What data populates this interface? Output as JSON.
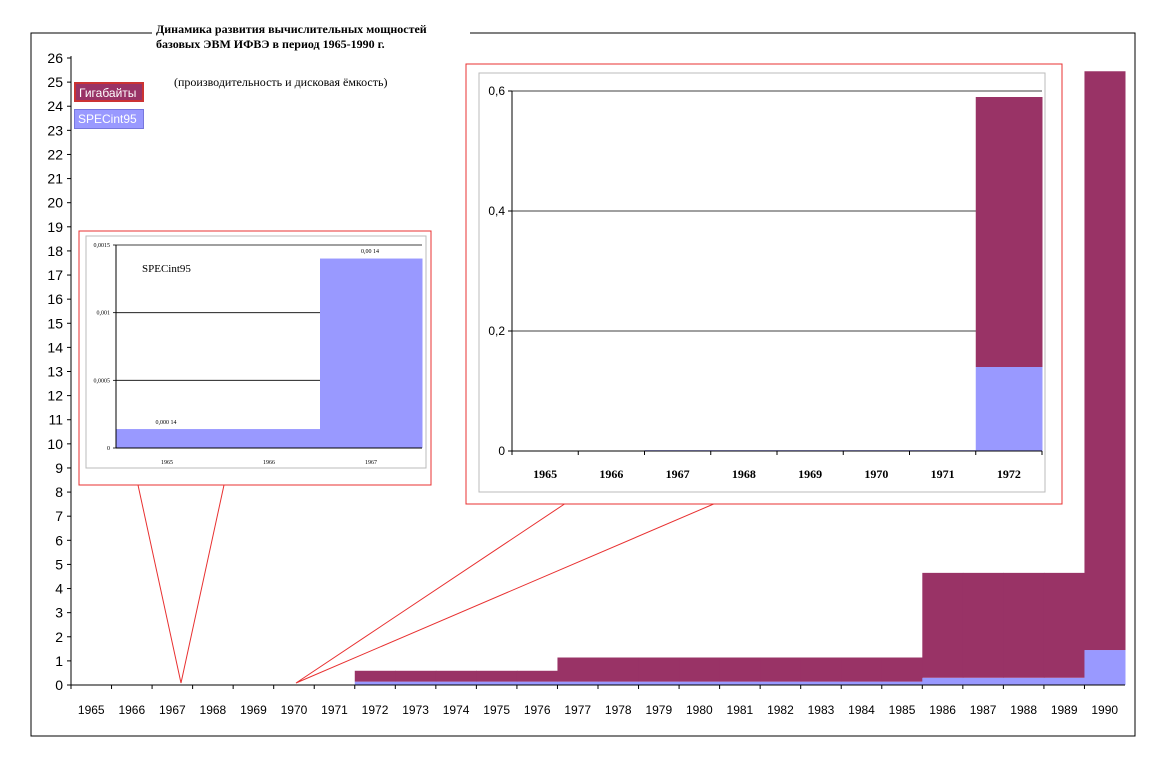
{
  "colors": {
    "gigabytes": "#993366",
    "specint": "#9999ff",
    "callout": "#e83030",
    "axis": "#000000"
  },
  "title": "Динамика развития вычислительных мощностей базовых ЭВМ ИФВЭ в период 1965-1990 г.",
  "subtitle": "(производительность и дисковая ёмкость)",
  "legend": [
    "Гигабайты",
    "SPECint95"
  ],
  "chart_data": [
    {
      "type": "bar",
      "stacked": true,
      "categories": [
        "1965",
        "1966",
        "1967",
        "1968",
        "1969",
        "1970",
        "1971",
        "1972",
        "1973",
        "1974",
        "1975",
        "1976",
        "1977",
        "1978",
        "1979",
        "1980",
        "1981",
        "1982",
        "1983",
        "1984",
        "1985",
        "1986",
        "1987",
        "1988",
        "1989",
        "1990"
      ],
      "series": [
        {
          "name": "SPECint95",
          "values": [
            0.00014,
            0.00014,
            0.0014,
            0.0014,
            0.0014,
            0.0014,
            0.0014,
            0.14,
            0.14,
            0.14,
            0.14,
            0.14,
            0.14,
            0.14,
            0.14,
            0.14,
            0.14,
            0.14,
            0.14,
            0.14,
            0.14,
            0.3,
            0.3,
            0.3,
            0.3,
            1.45
          ]
        },
        {
          "name": "Гигабайты",
          "values": [
            0,
            0,
            0,
            0,
            0,
            0,
            0,
            0.45,
            0.45,
            0.45,
            0.45,
            0.45,
            1.0,
            1.0,
            1.0,
            1.0,
            1.0,
            1.0,
            1.0,
            1.0,
            1.0,
            4.35,
            4.35,
            4.35,
            4.35,
            24.0
          ]
        }
      ],
      "ylim": [
        0,
        26
      ],
      "yticks": [
        "0",
        "1",
        "2",
        "3",
        "4",
        "5",
        "6",
        "7",
        "8",
        "9",
        "10",
        "11",
        "12",
        "13",
        "14",
        "15",
        "16",
        "17",
        "18",
        "19",
        "20",
        "21",
        "22",
        "23",
        "24",
        "25",
        "26"
      ],
      "legend_position": "top-left",
      "grid": false
    },
    {
      "type": "bar",
      "categories": [
        "1965",
        "1966",
        "1967"
      ],
      "series": [
        {
          "name": "SPECint95",
          "values": [
            0.00014,
            0.00014,
            0.0014
          ]
        }
      ],
      "data_labels": [
        "0,000 14",
        "0,00 14"
      ],
      "yticks": [
        "0",
        "0,0005",
        "0,001",
        "0,0015"
      ],
      "ylim": [
        0,
        0.0015
      ],
      "annotation": "SPECint95",
      "grid": true
    },
    {
      "type": "bar",
      "stacked": true,
      "categories": [
        "1965",
        "1966",
        "1967",
        "1968",
        "1969",
        "1970",
        "1971",
        "1972"
      ],
      "series": [
        {
          "name": "SPECint95",
          "values": [
            0.00014,
            0.00014,
            0.0014,
            0.0014,
            0.0014,
            0.0014,
            0.0014,
            0.14
          ]
        },
        {
          "name": "Гигабайты",
          "values": [
            0,
            0,
            0,
            0,
            0,
            0,
            0,
            0.45
          ]
        }
      ],
      "yticks": [
        "0",
        "0,2",
        "0,4",
        "0,6"
      ],
      "ylim": [
        0,
        0.6
      ],
      "grid": true
    }
  ]
}
